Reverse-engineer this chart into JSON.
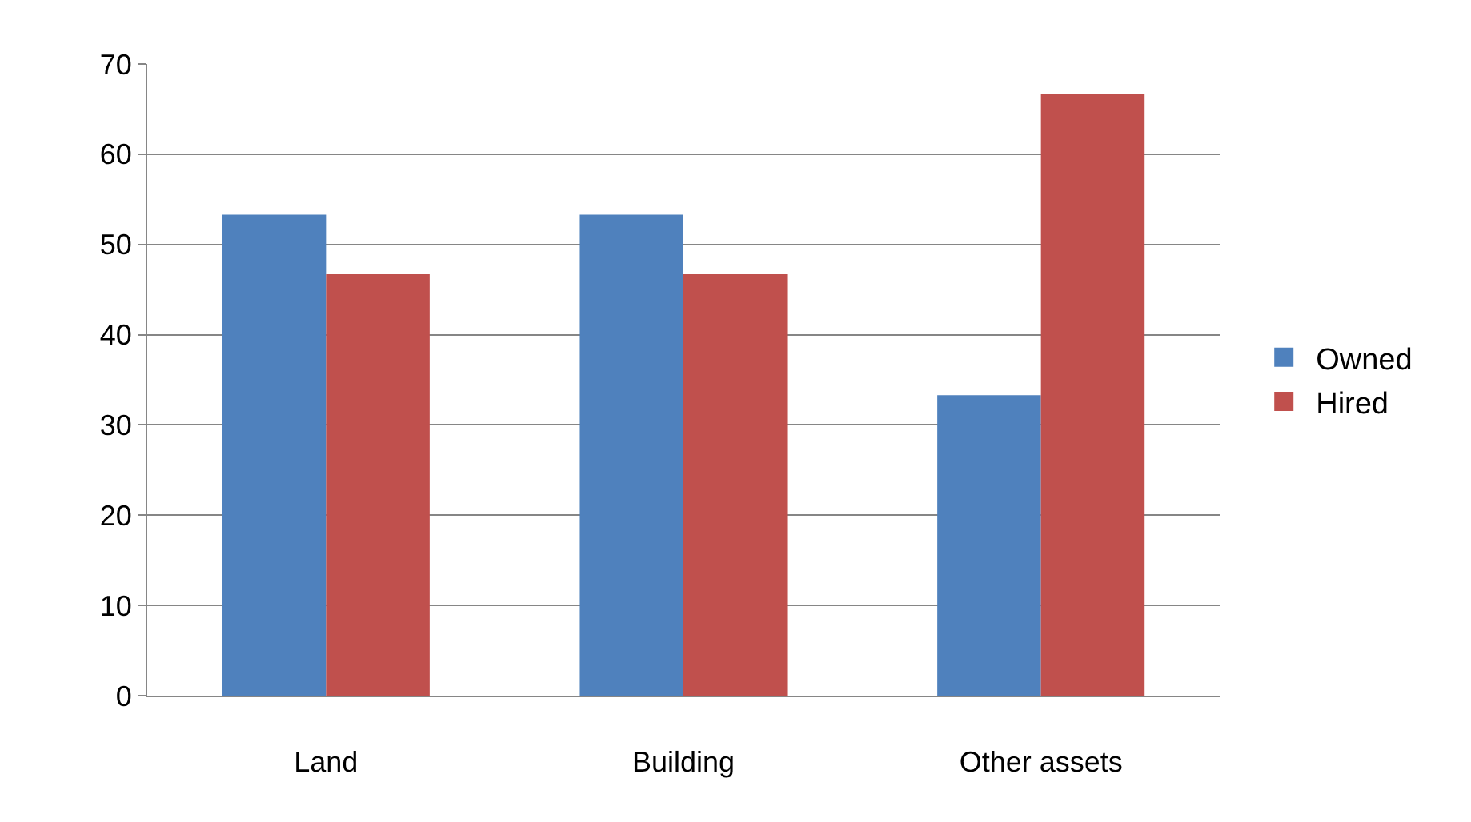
{
  "chart_data": {
    "type": "bar",
    "categories": [
      "Land",
      "Building",
      "Other assets"
    ],
    "series": [
      {
        "name": "Owned",
        "color": "#4f81bd",
        "values": [
          53.3,
          53.3,
          33.3
        ]
      },
      {
        "name": "Hired",
        "color": "#c0504d",
        "values": [
          46.7,
          46.7,
          66.7
        ]
      }
    ],
    "ylim": [
      0,
      70
    ],
    "yticks": [
      0,
      10,
      20,
      30,
      40,
      50,
      60,
      70
    ],
    "grid": "y",
    "legend": "right"
  }
}
